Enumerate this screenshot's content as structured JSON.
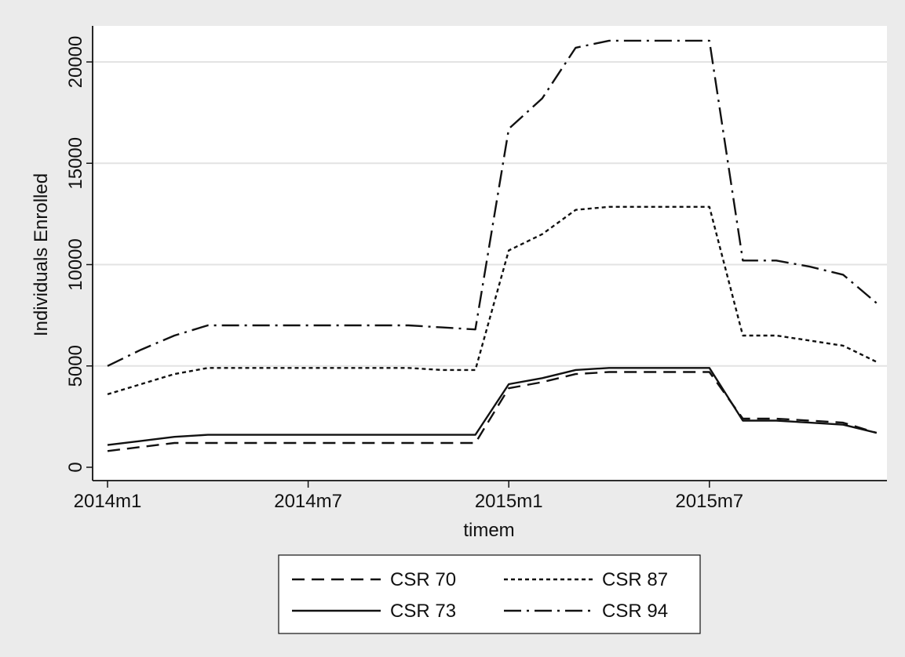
{
  "chart_data": {
    "type": "line",
    "title": "",
    "xlabel": "timem",
    "ylabel": "Individuals Enrolled",
    "x": [
      "2014m1",
      "2014m2",
      "2014m3",
      "2014m4",
      "2014m5",
      "2014m6",
      "2014m7",
      "2014m8",
      "2014m9",
      "2014m10",
      "2014m11",
      "2014m12",
      "2015m1",
      "2015m2",
      "2015m3",
      "2015m4",
      "2015m5",
      "2015m6",
      "2015m7",
      "2015m8",
      "2015m9",
      "2015m10",
      "2015m11",
      "2015m12"
    ],
    "x_ticks": [
      "2014m1",
      "2014m7",
      "2015m1",
      "2015m7"
    ],
    "ylim": [
      0,
      21500
    ],
    "y_ticks": [
      0,
      5000,
      10000,
      15000,
      20000
    ],
    "y_tick_labels": [
      "0",
      "5000",
      "10000",
      "15000",
      "20000"
    ],
    "grid": true,
    "legend_position": "bottom",
    "series": [
      {
        "name": "CSR 70",
        "style": "dashed",
        "values": [
          800,
          1000,
          1200,
          1200,
          1200,
          1200,
          1200,
          1200,
          1200,
          1200,
          1200,
          1200,
          3900,
          4200,
          4600,
          4700,
          4700,
          4700,
          4700,
          2400,
          2400,
          2300,
          2200,
          1700
        ]
      },
      {
        "name": "CSR 87",
        "style": "dotted",
        "values": [
          3600,
          4100,
          4600,
          4900,
          4900,
          4900,
          4900,
          4900,
          4900,
          4900,
          4800,
          4800,
          10700,
          11500,
          12700,
          12850,
          12850,
          12850,
          12850,
          6500,
          6500,
          6250,
          6000,
          5200
        ]
      },
      {
        "name": "CSR 73",
        "style": "solid",
        "values": [
          1100,
          1300,
          1500,
          1600,
          1600,
          1600,
          1600,
          1600,
          1600,
          1600,
          1600,
          1600,
          4100,
          4400,
          4800,
          4900,
          4900,
          4900,
          4900,
          2300,
          2300,
          2200,
          2100,
          1700
        ]
      },
      {
        "name": "CSR 94",
        "style": "dashdot",
        "values": [
          5000,
          5800,
          6500,
          7000,
          7000,
          7000,
          7000,
          7000,
          7000,
          7000,
          6900,
          6800,
          16700,
          18200,
          20700,
          21050,
          21050,
          21050,
          21050,
          10200,
          10200,
          9900,
          9500,
          8100
        ]
      }
    ]
  }
}
